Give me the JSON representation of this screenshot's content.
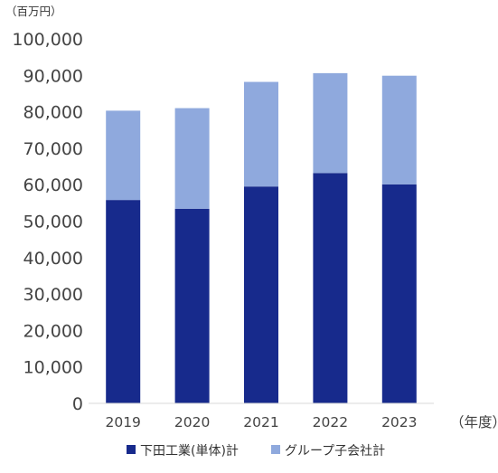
{
  "chart_data": {
    "type": "bar",
    "stacked": true,
    "categories": [
      "2019",
      "2020",
      "2021",
      "2022",
      "2023"
    ],
    "series": [
      {
        "name": "下田工業(単体)計",
        "values": [
          55800,
          53400,
          59500,
          63200,
          60100
        ],
        "color": "#172a8c"
      },
      {
        "name": "グループ子会社計",
        "values": [
          24500,
          27600,
          28700,
          27400,
          29800
        ],
        "color": "#8fa9dd"
      }
    ],
    "y_unit_label": "（百万円）",
    "x_unit_label": "（年度）",
    "ylim": [
      0,
      100000
    ],
    "y_ticks": [
      0,
      10000,
      20000,
      30000,
      40000,
      50000,
      60000,
      70000,
      80000,
      90000,
      100000
    ],
    "y_tick_labels": [
      "0",
      "10,000",
      "20,000",
      "30,000",
      "40,000",
      "50,000",
      "60,000",
      "70,000",
      "80,000",
      "90,000",
      "100,000"
    ],
    "grid": false,
    "legend_position": "bottom"
  }
}
